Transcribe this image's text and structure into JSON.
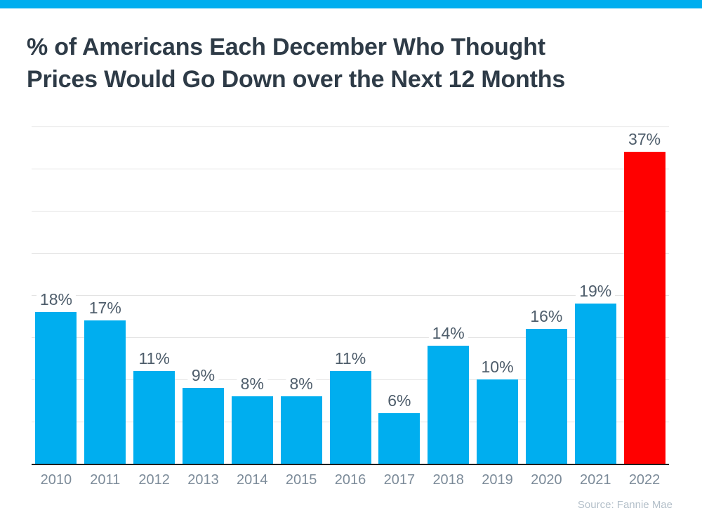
{
  "banner": {
    "color": "#00AEEF"
  },
  "title": {
    "line1": "% of Americans Each December Who Thought",
    "line2": "Prices Would Go Down over the Next 12 Months",
    "color": "#2E3B47"
  },
  "source": {
    "text": "Source: Fannie Mae",
    "color": "#B3BFC9"
  },
  "colors": {
    "bar_default": "#00AEEF",
    "bar_highlight": "#FF0000",
    "value_label": "#4E5D6B",
    "tick_label": "#7C8B99",
    "gridline": "#E3E3E3",
    "axis_line": "#1F1F1F"
  },
  "chart_data": {
    "type": "bar",
    "title": "% of Americans Each December Who Thought Prices Would Go Down over the Next 12 Months",
    "categories": [
      "2010",
      "2011",
      "2012",
      "2013",
      "2014",
      "2015",
      "2016",
      "2017",
      "2018",
      "2019",
      "2020",
      "2021",
      "2022"
    ],
    "values": [
      18,
      17,
      11,
      9,
      8,
      8,
      11,
      6,
      14,
      10,
      16,
      19,
      37
    ],
    "value_labels": [
      "18%",
      "17%",
      "11%",
      "9%",
      "8%",
      "8%",
      "11%",
      "6%",
      "14%",
      "10%",
      "16%",
      "19%",
      "37%"
    ],
    "highlight_index": 12,
    "xlabel": "",
    "ylabel": "",
    "ylim": [
      0,
      40
    ],
    "grid_step": 5,
    "grid": true,
    "legend": false,
    "annotation": "Source: Fannie Mae"
  }
}
